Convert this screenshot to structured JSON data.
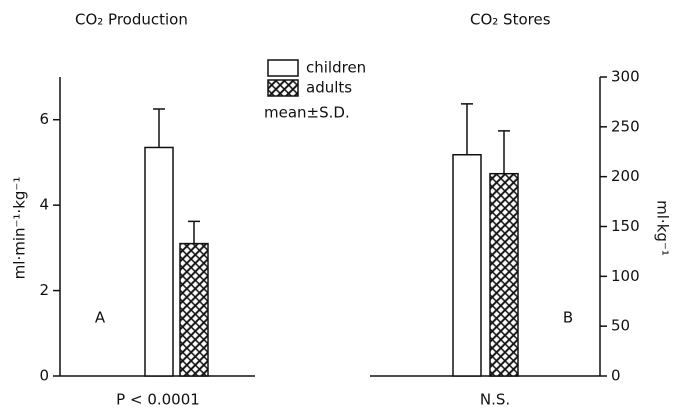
{
  "chart_data": [
    {
      "type": "bar",
      "title": "CO₂ Production",
      "ylabel": "ml·min⁻¹·kg⁻¹",
      "xlabel": "P < 0.0001",
      "panel_label": "A",
      "categories": [
        null
      ],
      "axis_side": "left",
      "series": [
        {
          "fill": "white",
          "values": [
            5.35
          ],
          "errors": [
            0.9
          ]
        },
        {
          "fill": "hatch",
          "values": [
            3.1
          ],
          "errors": [
            0.52
          ]
        }
      ],
      "ylim": [
        0,
        7
      ],
      "yticks": [
        0,
        2,
        4,
        6
      ]
    },
    {
      "type": "bar",
      "title": "CO₂ Stores",
      "ylabel": "ml·kg⁻¹",
      "xlabel": "N.S.",
      "panel_label": "B",
      "categories": [
        null
      ],
      "axis_side": "right",
      "series": [
        {
          "fill": "white",
          "values": [
            222
          ],
          "errors": [
            51
          ]
        },
        {
          "fill": "hatch",
          "values": [
            203
          ],
          "errors": [
            43
          ]
        }
      ],
      "ylim": [
        0,
        300
      ],
      "yticks": [
        0,
        50,
        100,
        150,
        200,
        250,
        300
      ]
    }
  ],
  "legend": {
    "entries": [
      "children",
      "adults"
    ],
    "note": "mean±S.D."
  }
}
